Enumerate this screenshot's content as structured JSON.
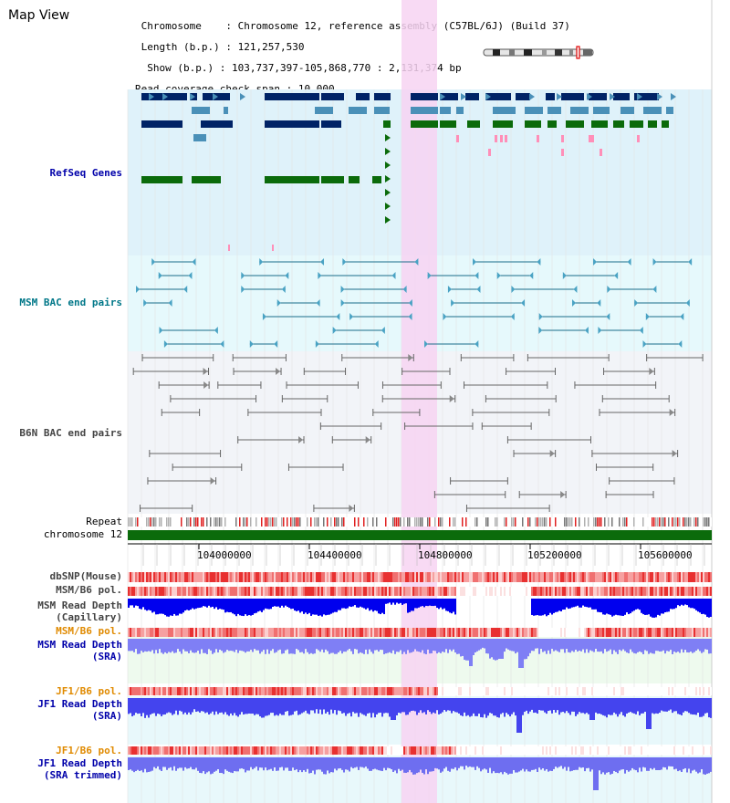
{
  "view_title": "Map View",
  "info": {
    "chromosome_key": "Chromosome",
    "chromosome_value": "Chromosome 12, reference assembly (C57BL/6J) (Build 37)",
    "length_key": "Length (b.p.)",
    "length_value": "121,257,530",
    "show_key": "Show (b.p.)",
    "show_value": "103,737,397-105,868,770 : 2,131,374 bp",
    "span_key": "Read coverage check span",
    "span_value": "10,000"
  },
  "tracks": {
    "refseq": "RefSeq Genes",
    "msm_bac": "MSM BAC end pairs",
    "b6n_bac": "B6N BAC end pairs",
    "repeat": "Repeat",
    "chromosome": "chromosome 12",
    "dbsnp": "dbSNP(Mouse)",
    "msm_b6_pol_1": "MSM/B6 pol.",
    "msm_depth_cap_1": "MSM Read Depth",
    "msm_depth_cap_2": "(Capillary)",
    "msm_b6_pol_2": "MSM/B6 pol.",
    "msm_depth_sra_1": "MSM Read Depth",
    "msm_depth_sra_2": "(SRA)",
    "jf1_pol_1": "JF1/B6 pol.",
    "jf1_depth_sra_1": "JF1 Read Depth",
    "jf1_depth_sra_2": "(SRA)",
    "jf1_pol_2": "JF1/B6 pol.",
    "jf1_depth_trim_1": "JF1 Read Depth",
    "jf1_depth_trim_2": "(SRA trimmed)"
  },
  "axis": {
    "tick_labels": [
      "104000000",
      "104400000",
      "104800000",
      "105200000",
      "105600000"
    ]
  },
  "colors": {
    "refseq_bg": "#dff2fa",
    "msm_bg": "#e6f9fc",
    "b6n_bg": "#f2f4f8",
    "highlight": "#f7d3f2",
    "chromosome_bar": "#0b6b0b",
    "depth_capillary": "#0000ee",
    "depth_sra": "#7f7ff5",
    "navy": "#002366",
    "steel": "#4a90b8",
    "green": "#0b6b0b"
  }
}
